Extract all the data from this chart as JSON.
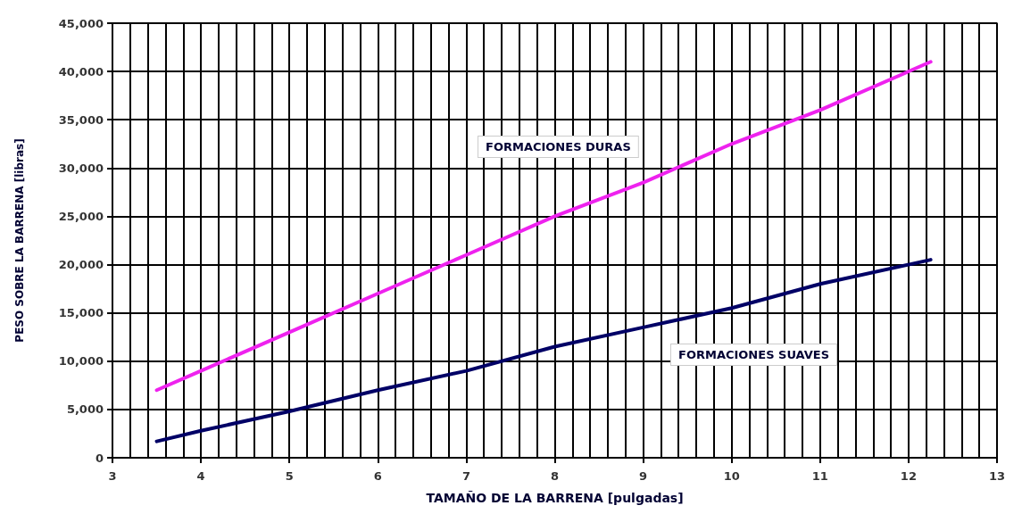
{
  "chart_data": {
    "type": "line",
    "xlabel": "TAMAÑO DE LA BARRENA [pulgadas]",
    "ylabel": "PESO SOBRE LA BARRENA [libras]",
    "xlim": [
      3,
      13
    ],
    "xticks": [
      3,
      4,
      5,
      6,
      7,
      8,
      9,
      10,
      11,
      12,
      13
    ],
    "ylim": [
      0,
      45000
    ],
    "yticks": [
      {
        "value": 0,
        "label": "0"
      },
      {
        "value": 5000,
        "label": "5,000"
      },
      {
        "value": 10000,
        "label": "10,000"
      },
      {
        "value": 15000,
        "label": "15,000"
      },
      {
        "value": 20000,
        "label": "20,000"
      },
      {
        "value": 25000,
        "label": "25,000"
      },
      {
        "value": 30000,
        "label": "30,000"
      },
      {
        "value": 35000,
        "label": "35,000"
      },
      {
        "value": 40000,
        "label": "40,000"
      },
      {
        "value": 45000,
        "label": "45,000"
      }
    ],
    "grid": true,
    "marker": "none",
    "line_style": "solid",
    "legend": false,
    "series": [
      {
        "name": "FORMACIONES DURAS",
        "color": "#ee22ee",
        "x": [
          3.5,
          4,
          5,
          6,
          7,
          8,
          9,
          10,
          11,
          12.25
        ],
        "values": [
          7000,
          9000,
          13000,
          17000,
          21000,
          25000,
          28500,
          32500,
          36000,
          41000
        ]
      },
      {
        "name": "FORMACIONES SUAVES",
        "color": "#000066",
        "x": [
          3.5,
          4,
          5,
          6,
          7,
          8,
          9,
          10,
          11,
          12.25
        ],
        "values": [
          1700,
          2800,
          4800,
          7000,
          9000,
          11500,
          13500,
          15500,
          18000,
          20500
        ]
      }
    ]
  }
}
